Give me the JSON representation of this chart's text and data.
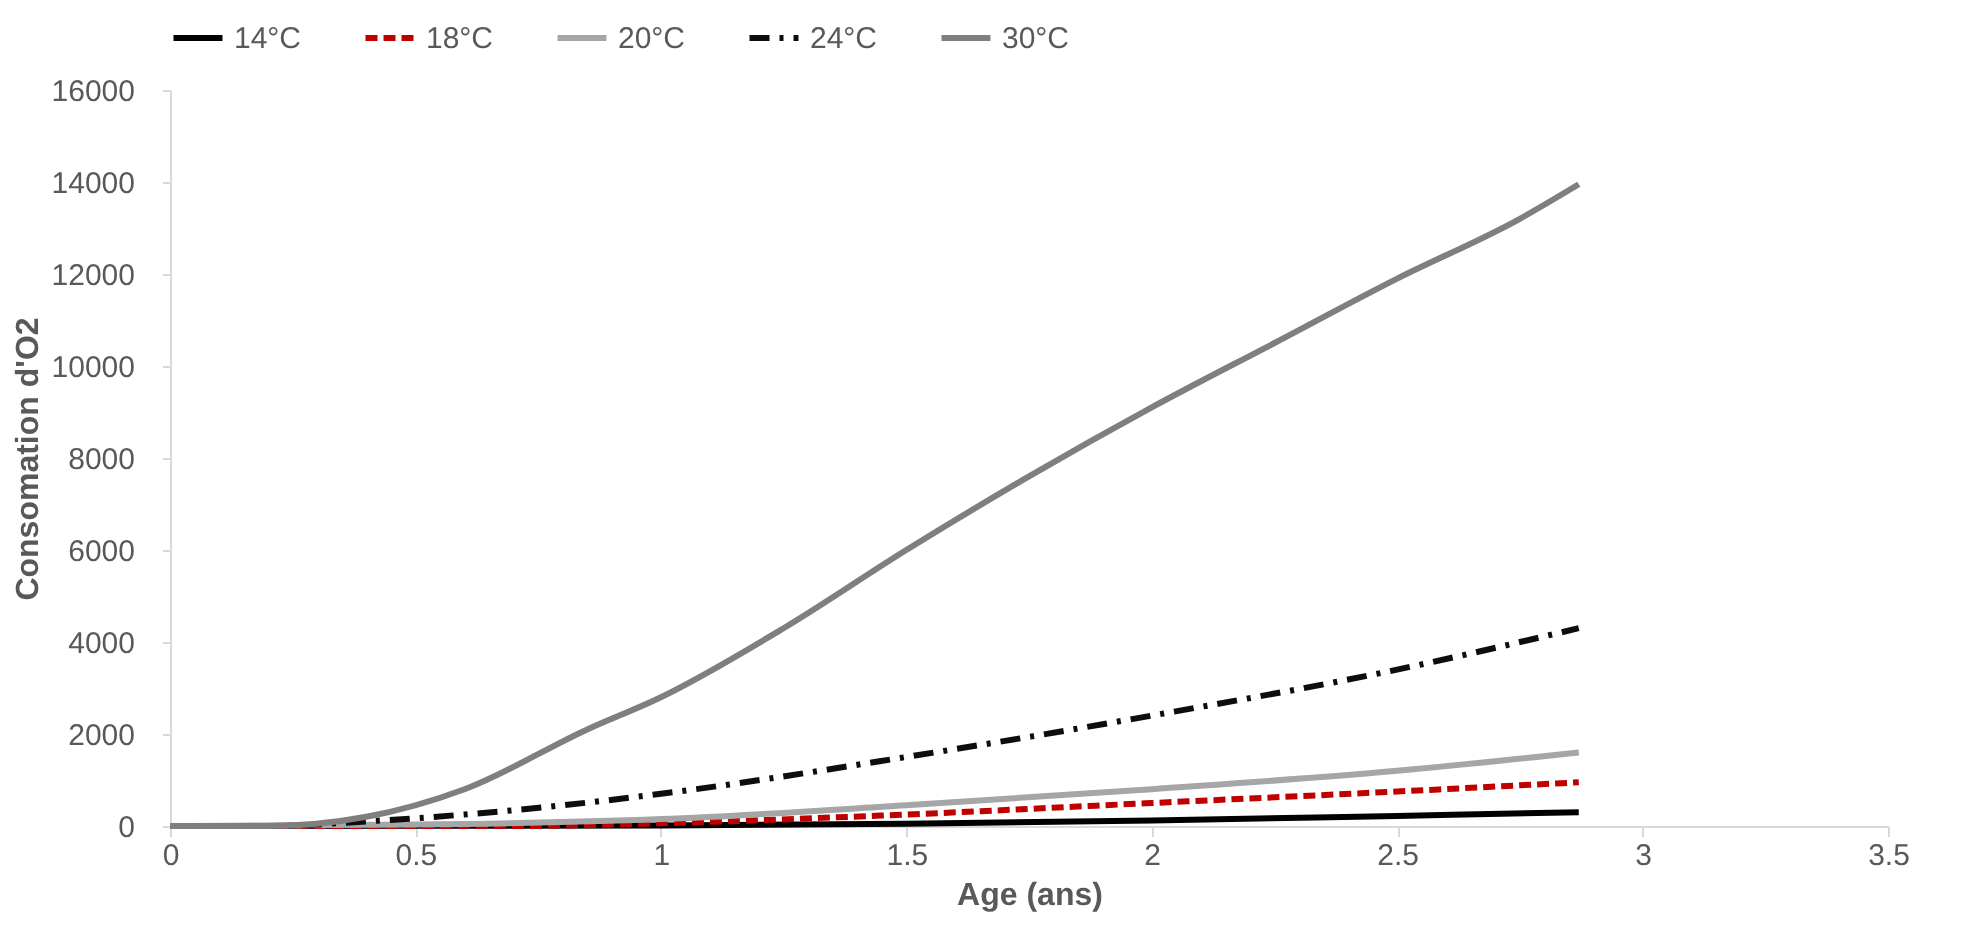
{
  "chart_data": {
    "type": "line",
    "xlabel": "Age (ans)",
    "ylabel": "Consomation d'O2",
    "xlim": [
      0,
      3.5
    ],
    "xticks": [
      0,
      0.5,
      1,
      1.5,
      2,
      2.5,
      3,
      3.5
    ],
    "ylim": [
      0,
      16000
    ],
    "yticks": [
      0,
      2000,
      4000,
      6000,
      8000,
      10000,
      12000,
      14000,
      16000
    ],
    "grid": false,
    "legend": "top",
    "marker": "none",
    "series": [
      {
        "name": "14°C",
        "color": "#000000",
        "line_style": "solid",
        "x": [
          0,
          1,
          1.5,
          2,
          2.5,
          2.87
        ],
        "values": [
          0,
          10,
          50,
          120,
          220,
          300
        ]
      },
      {
        "name": "18°C",
        "color": "#c00000",
        "line_style": "dashed",
        "x": [
          0,
          0.7,
          1,
          1.5,
          2,
          2.5,
          2.87
        ],
        "values": [
          0,
          0,
          60,
          250,
          500,
          750,
          950
        ]
      },
      {
        "name": "20°C",
        "color": "#a6a6a6",
        "line_style": "solid",
        "x": [
          0,
          0.5,
          1,
          1.5,
          2,
          2.5,
          2.87
        ],
        "values": [
          0,
          30,
          150,
          450,
          800,
          1200,
          1600
        ]
      },
      {
        "name": "24°C",
        "color": "#0d0d0d",
        "line_style": "dashdot",
        "x": [
          0,
          0.2,
          0.4,
          0.6,
          0.8,
          1,
          1.5,
          2,
          2.5,
          2.87
        ],
        "values": [
          0,
          0,
          100,
          250,
          450,
          700,
          1500,
          2400,
          3400,
          4300
        ]
      },
      {
        "name": "30°C",
        "color": "#7f7f7f",
        "line_style": "solid",
        "x": [
          0,
          0.2,
          0.4,
          0.6,
          0.85,
          1,
          1.25,
          1.5,
          1.75,
          2,
          2.25,
          2.5,
          2.75,
          2.87
        ],
        "values": [
          0,
          0,
          200,
          800,
          2100,
          2800,
          4300,
          6000,
          7600,
          9100,
          10500,
          11900,
          13200,
          13950
        ]
      }
    ]
  }
}
